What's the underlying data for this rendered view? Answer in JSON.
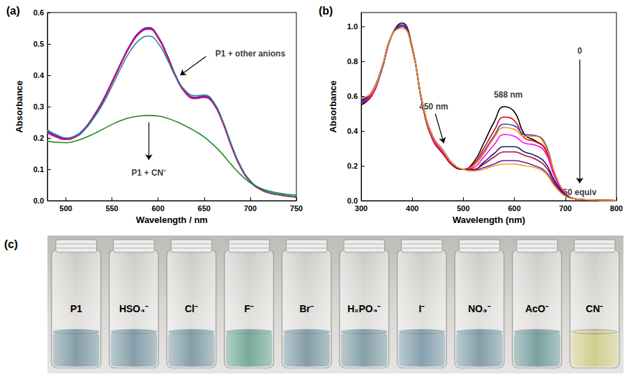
{
  "chart_data": [
    {
      "type": "line",
      "title": "(a)",
      "x_label": "Wavelength / nm",
      "y_label": "Absorbance",
      "xlim": [
        480,
        750
      ],
      "xticks": [
        500,
        550,
        600,
        650,
        700,
        750
      ],
      "ylim": [
        0,
        0.6
      ],
      "yticks": [
        {
          "value": 0,
          "label": "0.0"
        },
        {
          "value": 0.1,
          "label": "0.1"
        },
        {
          "value": 0.2,
          "label": "0.2"
        },
        {
          "value": 0.3,
          "label": "0.3"
        },
        {
          "value": 0.4,
          "label": "0.4"
        },
        {
          "value": 0.5,
          "label": "0.5"
        },
        {
          "value": 0.6,
          "label": "0.6"
        }
      ],
      "grid": false,
      "x": [
        480,
        490,
        500,
        510,
        520,
        530,
        540,
        550,
        560,
        570,
        580,
        590,
        600,
        610,
        620,
        630,
        640,
        650,
        660,
        670,
        680,
        690,
        700,
        710,
        720,
        730,
        740,
        750
      ],
      "series": [
        {
          "color": "#000000",
          "values": [
            0.22,
            0.205,
            0.198,
            0.205,
            0.228,
            0.268,
            0.318,
            0.378,
            0.44,
            0.497,
            0.537,
            0.55,
            0.522,
            0.462,
            0.392,
            0.345,
            0.328,
            0.332,
            0.312,
            0.252,
            0.172,
            0.105,
            0.062,
            0.038,
            0.026,
            0.02,
            0.015,
            0.012
          ]
        },
        {
          "color": "#e00000",
          "values": [
            0.218,
            0.203,
            0.196,
            0.203,
            0.226,
            0.266,
            0.316,
            0.376,
            0.438,
            0.495,
            0.535,
            0.548,
            0.52,
            0.46,
            0.39,
            0.343,
            0.326,
            0.33,
            0.31,
            0.25,
            0.17,
            0.104,
            0.061,
            0.037,
            0.025,
            0.019,
            0.015,
            0.012
          ]
        },
        {
          "color": "#2a3bd6",
          "values": [
            0.222,
            0.207,
            0.2,
            0.207,
            0.23,
            0.27,
            0.32,
            0.38,
            0.442,
            0.499,
            0.539,
            0.552,
            0.524,
            0.464,
            0.394,
            0.347,
            0.33,
            0.334,
            0.314,
            0.254,
            0.174,
            0.106,
            0.063,
            0.039,
            0.027,
            0.021,
            0.016,
            0.013
          ]
        },
        {
          "color": "#e000e0",
          "values": [
            0.216,
            0.202,
            0.195,
            0.202,
            0.225,
            0.265,
            0.315,
            0.375,
            0.437,
            0.494,
            0.534,
            0.547,
            0.519,
            0.459,
            0.389,
            0.342,
            0.325,
            0.329,
            0.309,
            0.249,
            0.169,
            0.103,
            0.06,
            0.037,
            0.025,
            0.019,
            0.014,
            0.011
          ]
        },
        {
          "color": "#d0105a",
          "values": [
            0.219,
            0.204,
            0.197,
            0.204,
            0.227,
            0.267,
            0.317,
            0.377,
            0.439,
            0.496,
            0.536,
            0.549,
            0.521,
            0.461,
            0.391,
            0.344,
            0.327,
            0.331,
            0.311,
            0.251,
            0.171,
            0.104,
            0.061,
            0.038,
            0.026,
            0.02,
            0.015,
            0.012
          ]
        },
        {
          "color": "#1f8a96",
          "values": [
            0.225,
            0.21,
            0.2,
            0.206,
            0.226,
            0.262,
            0.308,
            0.365,
            0.425,
            0.478,
            0.513,
            0.525,
            0.503,
            0.45,
            0.39,
            0.35,
            0.335,
            0.337,
            0.316,
            0.256,
            0.176,
            0.108,
            0.064,
            0.04,
            0.027,
            0.021,
            0.016,
            0.013
          ]
        },
        {
          "color": "#1e8a1e",
          "values": [
            0.19,
            0.186,
            0.185,
            0.19,
            0.2,
            0.213,
            0.228,
            0.243,
            0.256,
            0.265,
            0.27,
            0.272,
            0.27,
            0.263,
            0.252,
            0.238,
            0.222,
            0.203,
            0.178,
            0.148,
            0.113,
            0.082,
            0.057,
            0.041,
            0.031,
            0.025,
            0.02,
            0.018
          ]
        }
      ],
      "annotations": [
        {
          "text": "P1 + other anions",
          "x": 700,
          "y": 0.47,
          "arrow_from": [
            652,
            0.46
          ],
          "arrow_to": [
            624,
            0.4
          ]
        },
        {
          "text": "P1 + CN⁻",
          "x": 590,
          "y": 0.09,
          "arrow_from": [
            590,
            0.25
          ],
          "arrow_to": [
            590,
            0.13
          ]
        }
      ]
    },
    {
      "type": "line",
      "title": "(b)",
      "x_label": "Wavelength (nm)",
      "y_label": "Absorbance",
      "xlim": [
        300,
        800
      ],
      "xticks": [
        300,
        400,
        500,
        600,
        700,
        800
      ],
      "ylim": [
        0,
        1.08
      ],
      "yticks": [
        {
          "value": 0,
          "label": "0.0"
        },
        {
          "value": 0.2,
          "label": "0.2"
        },
        {
          "value": 0.4,
          "label": "0.4"
        },
        {
          "value": 0.6,
          "label": "0.6"
        },
        {
          "value": 0.8,
          "label": "0.8"
        },
        {
          "value": 1,
          "label": "1.0"
        }
      ],
      "grid": false,
      "x": [
        300,
        320,
        340,
        360,
        380,
        400,
        420,
        440,
        460,
        480,
        500,
        520,
        540,
        560,
        580,
        600,
        620,
        640,
        660,
        680,
        700,
        720,
        740,
        760,
        780,
        800
      ],
      "series": [
        {
          "color": "#000000",
          "values": [
            0.55,
            0.6,
            0.75,
            0.95,
            1.02,
            0.88,
            0.55,
            0.35,
            0.27,
            0.2,
            0.18,
            0.22,
            0.33,
            0.45,
            0.54,
            0.51,
            0.38,
            0.345,
            0.3,
            0.14,
            0.04,
            0.01,
            0.005,
            0.003,
            0.002,
            0.001
          ]
        },
        {
          "color": "#e00000",
          "values": [
            0.56,
            0.6,
            0.75,
            0.95,
            1.01,
            0.88,
            0.55,
            0.35,
            0.27,
            0.2,
            0.18,
            0.21,
            0.3,
            0.4,
            0.48,
            0.46,
            0.36,
            0.34,
            0.3,
            0.14,
            0.04,
            0.01,
            0.005,
            0.003,
            0.002,
            0.001
          ]
        },
        {
          "color": "#2a3bd6",
          "values": [
            0.56,
            0.61,
            0.75,
            0.95,
            1.01,
            0.87,
            0.55,
            0.36,
            0.28,
            0.21,
            0.18,
            0.2,
            0.28,
            0.37,
            0.44,
            0.43,
            0.38,
            0.375,
            0.33,
            0.15,
            0.045,
            0.01,
            0.005,
            0.003,
            0.002,
            0.001
          ]
        },
        {
          "color": "#ff8c00",
          "values": [
            0.57,
            0.61,
            0.76,
            0.95,
            1.0,
            0.87,
            0.56,
            0.36,
            0.28,
            0.21,
            0.18,
            0.2,
            0.27,
            0.36,
            0.42,
            0.41,
            0.37,
            0.37,
            0.32,
            0.15,
            0.045,
            0.01,
            0.005,
            0.003,
            0.002,
            0.001
          ]
        },
        {
          "color": "#ff00ff",
          "values": [
            0.57,
            0.61,
            0.76,
            0.95,
            1.0,
            0.87,
            0.56,
            0.36,
            0.28,
            0.21,
            0.18,
            0.19,
            0.25,
            0.32,
            0.38,
            0.37,
            0.33,
            0.32,
            0.28,
            0.13,
            0.04,
            0.01,
            0.005,
            0.003,
            0.002,
            0.001
          ]
        },
        {
          "color": "#1a1a6e",
          "values": [
            0.57,
            0.62,
            0.76,
            0.95,
            1.0,
            0.87,
            0.56,
            0.37,
            0.29,
            0.21,
            0.18,
            0.18,
            0.22,
            0.27,
            0.31,
            0.31,
            0.28,
            0.26,
            0.22,
            0.11,
            0.035,
            0.01,
            0.005,
            0.003,
            0.002,
            0.001
          ]
        },
        {
          "color": "#a01030",
          "values": [
            0.58,
            0.62,
            0.76,
            0.95,
            1.0,
            0.87,
            0.56,
            0.37,
            0.29,
            0.21,
            0.18,
            0.18,
            0.21,
            0.25,
            0.28,
            0.28,
            0.26,
            0.24,
            0.2,
            0.1,
            0.03,
            0.01,
            0.005,
            0.003,
            0.002,
            0.001
          ]
        },
        {
          "color": "#6a1aa0",
          "values": [
            0.58,
            0.62,
            0.76,
            0.95,
            1.0,
            0.87,
            0.56,
            0.37,
            0.29,
            0.21,
            0.18,
            0.175,
            0.19,
            0.21,
            0.23,
            0.23,
            0.22,
            0.2,
            0.17,
            0.09,
            0.03,
            0.01,
            0.005,
            0.003,
            0.002,
            0.001
          ]
        },
        {
          "color": "#f0a020",
          "values": [
            0.59,
            0.62,
            0.76,
            0.95,
            0.99,
            0.87,
            0.56,
            0.37,
            0.29,
            0.21,
            0.18,
            0.17,
            0.18,
            0.2,
            0.21,
            0.21,
            0.2,
            0.19,
            0.16,
            0.08,
            0.025,
            0.01,
            0.005,
            0.003,
            0.002,
            0.001
          ]
        }
      ],
      "annotations": [
        {
          "text": "588 nm",
          "x": 588,
          "y": 0.61
        },
        {
          "text": "450 nm",
          "x": 442,
          "y": 0.54,
          "arrow_from": [
            445,
            0.5
          ],
          "arrow_to": [
            462,
            0.33
          ]
        },
        {
          "text": "0",
          "x": 728,
          "y": 0.86,
          "arrow_from": [
            728,
            0.81
          ],
          "arrow_to": [
            728,
            0.1
          ]
        },
        {
          "text": "50 equiv",
          "x": 728,
          "y": 0.05
        }
      ]
    }
  ],
  "photo": {
    "title": "(c)",
    "vials": [
      {
        "label": "P1",
        "color": "#6e8d9a"
      },
      {
        "label": "HSO₄⁻",
        "color": "#6f8e9b"
      },
      {
        "label": "Cl⁻",
        "color": "#6f8e99"
      },
      {
        "label": "F⁻",
        "color": "#5f9a88"
      },
      {
        "label": "Br⁻",
        "color": "#6d8c98"
      },
      {
        "label": "H₂PO₄⁻",
        "color": "#6f8f9a"
      },
      {
        "label": "I⁻",
        "color": "#7090a0"
      },
      {
        "label": "NO₃⁻",
        "color": "#6e8e9c"
      },
      {
        "label": "AcO⁻",
        "color": "#628f90"
      },
      {
        "label": "CN⁻",
        "color": "#c9c47c"
      }
    ]
  }
}
